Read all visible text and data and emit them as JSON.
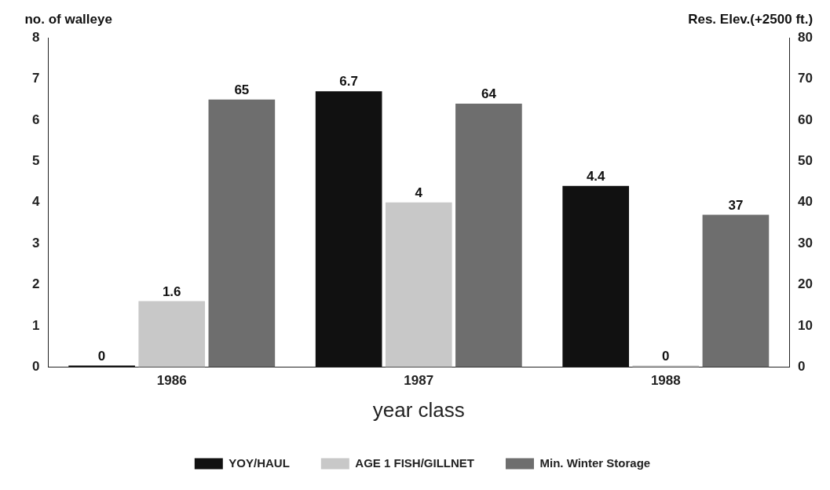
{
  "chart_data": {
    "type": "bar",
    "xlabel": "year class",
    "ylabel": "no. of walleye",
    "y2label": "Res. Elev.(+2500 ft.)",
    "categories": [
      "1986",
      "1987",
      "1988"
    ],
    "series": [
      {
        "name": "YOY/HAUL",
        "color": "#111111",
        "values": [
          0,
          6.7,
          4.4
        ]
      },
      {
        "name": "AGE 1 FISH/GILLNET",
        "color": "#c8c8c8",
        "values": [
          1.6,
          4,
          0
        ]
      },
      {
        "name": "Min. Winter Storage",
        "color": "#6e6e6e",
        "values": [
          65,
          64,
          37
        ],
        "axis": "y2"
      }
    ],
    "ylim": [
      0,
      8
    ],
    "yticks": [
      0,
      1,
      2,
      3,
      4,
      5,
      6,
      7,
      8
    ],
    "y2lim": [
      0,
      80
    ],
    "y2ticks": [
      0,
      10,
      20,
      30,
      40,
      50,
      60,
      70,
      80
    ],
    "data_labels": true,
    "grid": false,
    "legend": "bottom"
  }
}
